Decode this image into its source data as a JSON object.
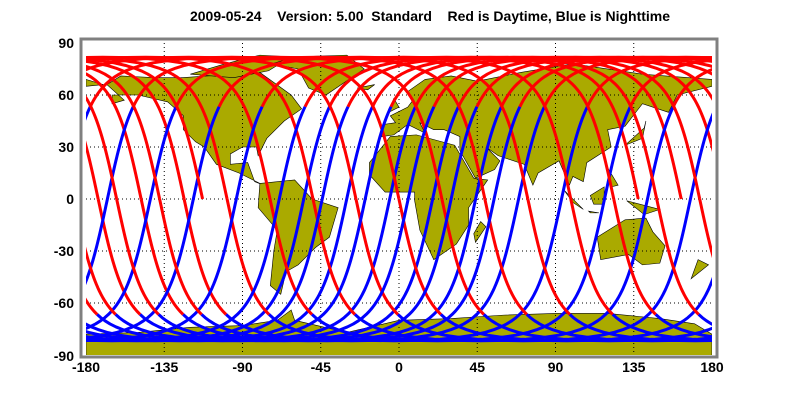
{
  "title": "2009-05-24    Version: 5.00  Standard    Red is Daytime, Blue is Nighttime",
  "colors": {
    "day": "#ff0000",
    "night": "#0000ff",
    "land": "#aaaa00",
    "frame": "#808080"
  },
  "chart_data": {
    "type": "map-ground-track",
    "title": "2009-05-24    Version: 5.00  Standard    Red is Daytime, Blue is Nighttime",
    "xlim": [
      -180,
      180
    ],
    "ylim": [
      -90,
      90
    ],
    "x_ticks": [
      "-180",
      "-135",
      "-90",
      "-45",
      "0",
      "45",
      "90",
      "135",
      "180"
    ],
    "y_ticks": [
      "90",
      "60",
      "30",
      "0",
      "-30",
      "-60",
      "-90"
    ],
    "grid": true,
    "series": [
      {
        "name": "Red is Daytime",
        "color": "#ff0000"
      },
      {
        "name": "Blue is Nighttime",
        "color": "#0000ff"
      }
    ]
  }
}
